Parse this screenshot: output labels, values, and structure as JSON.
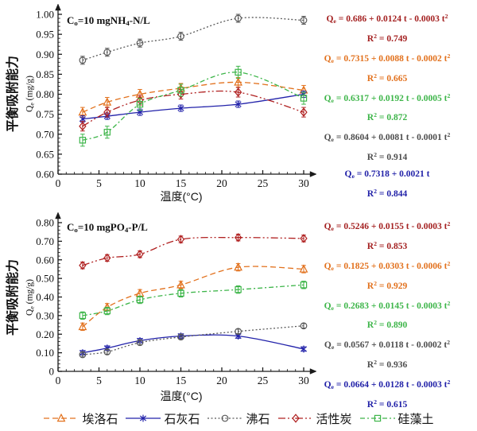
{
  "figure_title": "Equilibrium adsorption capacity vs temperature",
  "legend": {
    "items": [
      {
        "key": "halloysite",
        "label": "埃洛石"
      },
      {
        "key": "limestone",
        "label": "石灰石"
      },
      {
        "key": "zeolite",
        "label": "沸石"
      },
      {
        "key": "activated-carbon",
        "label": "活性炭"
      },
      {
        "key": "diatomite",
        "label": "硅藻土"
      }
    ]
  },
  "chart_data": [
    {
      "type": "line",
      "title": "Cₒ=10 mgNH₄-N/L",
      "xlabel": "温度(°C)",
      "ylabel": "平衡吸附能力",
      "ylabel_unit": "Qₑ (mg/g)",
      "xlim": [
        0,
        30
      ],
      "ylim": [
        0.6,
        1.0
      ],
      "xticks": {
        "values": [
          0,
          5,
          10,
          15,
          20,
          25,
          30
        ],
        "labels": [
          "0",
          "5",
          "10",
          "15",
          "20",
          "25",
          "30"
        ]
      },
      "yticks": {
        "values": [
          1.0,
          0.95,
          0.9,
          0.85,
          0.8,
          0.75,
          0.7,
          0.65,
          0.6
        ],
        "labels": [
          "1.00",
          "0.95",
          "0.90",
          "0.85",
          "0.80",
          "0.75",
          "0.70",
          "0.65",
          "0.60"
        ]
      },
      "yminor_step": 0.01,
      "xminor_step": 1,
      "x": [
        3,
        6,
        10,
        15,
        22,
        30
      ],
      "series": [
        {
          "key": "halloysite",
          "name": "埃洛石",
          "color": "#E2711D",
          "dash": [
            7,
            4
          ],
          "marker": "triangle",
          "values": [
            0.755,
            0.78,
            0.8,
            0.815,
            0.83,
            0.81
          ],
          "err": 0.012
        },
        {
          "key": "limestone",
          "name": "石灰石",
          "color": "#2222AA",
          "dash": [],
          "marker": "star",
          "values": [
            0.738,
            0.745,
            0.755,
            0.765,
            0.775,
            0.8
          ],
          "err": 0.008
        },
        {
          "key": "zeolite",
          "name": "沸石",
          "color": "#5A5A5A",
          "dash": [
            2,
            2.5
          ],
          "marker": "circle",
          "values": [
            0.885,
            0.905,
            0.928,
            0.945,
            0.99,
            0.985
          ],
          "err": 0.01
        },
        {
          "key": "activated-carbon",
          "name": "活性炭",
          "color": "#B02020",
          "dash": [
            9,
            3,
            2,
            3,
            2,
            3
          ],
          "marker": "diamond",
          "values": [
            0.72,
            0.755,
            0.785,
            0.8,
            0.805,
            0.755
          ],
          "err": 0.012
        },
        {
          "key": "diatomite",
          "name": "硅藻土",
          "color": "#3DB549",
          "dash": [
            6,
            3,
            2,
            3
          ],
          "marker": "square",
          "values": [
            0.685,
            0.705,
            0.775,
            0.81,
            0.855,
            0.79
          ],
          "err": 0.015
        }
      ],
      "equations": [
        {
          "eq": "Qₑ = 0.686 + 0.0124 t - 0.0003 t²",
          "r2": "R² = 0.749",
          "color": "#A42121"
        },
        {
          "eq": "Qₑ = 0.7315 + 0.0088 t - 0.0002 t²",
          "r2": "R² = 0.665",
          "color": "#E2711D"
        },
        {
          "eq": "Qₑ = 0.6317 + 0.0192 t - 0.0005 t²",
          "r2": "R² = 0.872",
          "color": "#3DB549"
        },
        {
          "eq": "Qₑ = 0.8604 + 0.0081 t - 0.0001 t²",
          "r2": "R² = 0.914",
          "color": "#4D4D4D"
        },
        {
          "eq": "Qₑ = 0.7318 + 0.0021 t",
          "r2": "R² = 0.844",
          "color": "#2121A8"
        }
      ]
    },
    {
      "type": "line",
      "title": "Cₒ=10 mgPO₄-P/L",
      "xlabel": "温度(°C)",
      "ylabel": "平衡吸附能力",
      "ylabel_unit": "Qₑ (mg/g)",
      "xlim": [
        0,
        30
      ],
      "ylim": [
        0,
        0.8
      ],
      "xticks": {
        "values": [
          0,
          5,
          10,
          15,
          20,
          25,
          30
        ],
        "labels": [
          "0",
          "5",
          "10",
          "15",
          "20",
          "25",
          "30"
        ]
      },
      "yticks": {
        "values": [
          0.8,
          0.7,
          0.6,
          0.5,
          0.4,
          0.3,
          0.2,
          0.1,
          0
        ],
        "labels": [
          "0.80",
          "0.70",
          "0.60",
          "0.50",
          "0.40",
          "0.30",
          "0.20",
          "0.10",
          "0"
        ]
      },
      "yminor_step": 0.02,
      "xminor_step": 1,
      "x": [
        3,
        6,
        10,
        15,
        22,
        30
      ],
      "series": [
        {
          "key": "halloysite",
          "name": "埃洛石",
          "color": "#E2711D",
          "dash": [
            7,
            4
          ],
          "marker": "triangle",
          "values": [
            0.24,
            0.345,
            0.42,
            0.465,
            0.56,
            0.55
          ],
          "err": 0.02
        },
        {
          "key": "limestone",
          "name": "石灰石",
          "color": "#2222AA",
          "dash": [],
          "marker": "star",
          "values": [
            0.1,
            0.125,
            0.165,
            0.19,
            0.19,
            0.12
          ],
          "err": 0.012
        },
        {
          "key": "zeolite",
          "name": "沸石",
          "color": "#5A5A5A",
          "dash": [
            2,
            2.5
          ],
          "marker": "circle",
          "values": [
            0.09,
            0.105,
            0.155,
            0.185,
            0.215,
            0.245
          ],
          "err": 0.012
        },
        {
          "key": "activated-carbon",
          "name": "活性炭",
          "color": "#B02020",
          "dash": [
            9,
            3,
            2,
            3,
            2,
            3
          ],
          "marker": "diamond",
          "values": [
            0.57,
            0.61,
            0.63,
            0.71,
            0.72,
            0.715
          ],
          "err": 0.018
        },
        {
          "key": "diatomite",
          "name": "硅藻土",
          "color": "#3DB549",
          "dash": [
            6,
            3,
            2,
            3
          ],
          "marker": "square",
          "values": [
            0.3,
            0.325,
            0.385,
            0.42,
            0.44,
            0.465
          ],
          "err": 0.02
        }
      ],
      "equations": [
        {
          "eq": "Qₑ = 0.5246 + 0.0155 t - 0.0003 t²",
          "r2": "R² = 0.853",
          "color": "#A42121"
        },
        {
          "eq": "Qₑ = 0.1825 + 0.0303 t - 0.0006 t²",
          "r2": "R² = 0.929",
          "color": "#E2711D"
        },
        {
          "eq": "Qₑ = 0.2683 + 0.0145 t - 0.0003 t²",
          "r2": "R² = 0.890",
          "color": "#3DB549"
        },
        {
          "eq": "Qₑ = 0.0567 + 0.0118 t - 0.0002 t²",
          "r2": "R² = 0.936",
          "color": "#4D4D4D"
        },
        {
          "eq": "Qₑ = 0.0664 + 0.0128 t - 0.0003 t²",
          "r2": "R² = 0.615",
          "color": "#2121A8"
        }
      ]
    }
  ]
}
